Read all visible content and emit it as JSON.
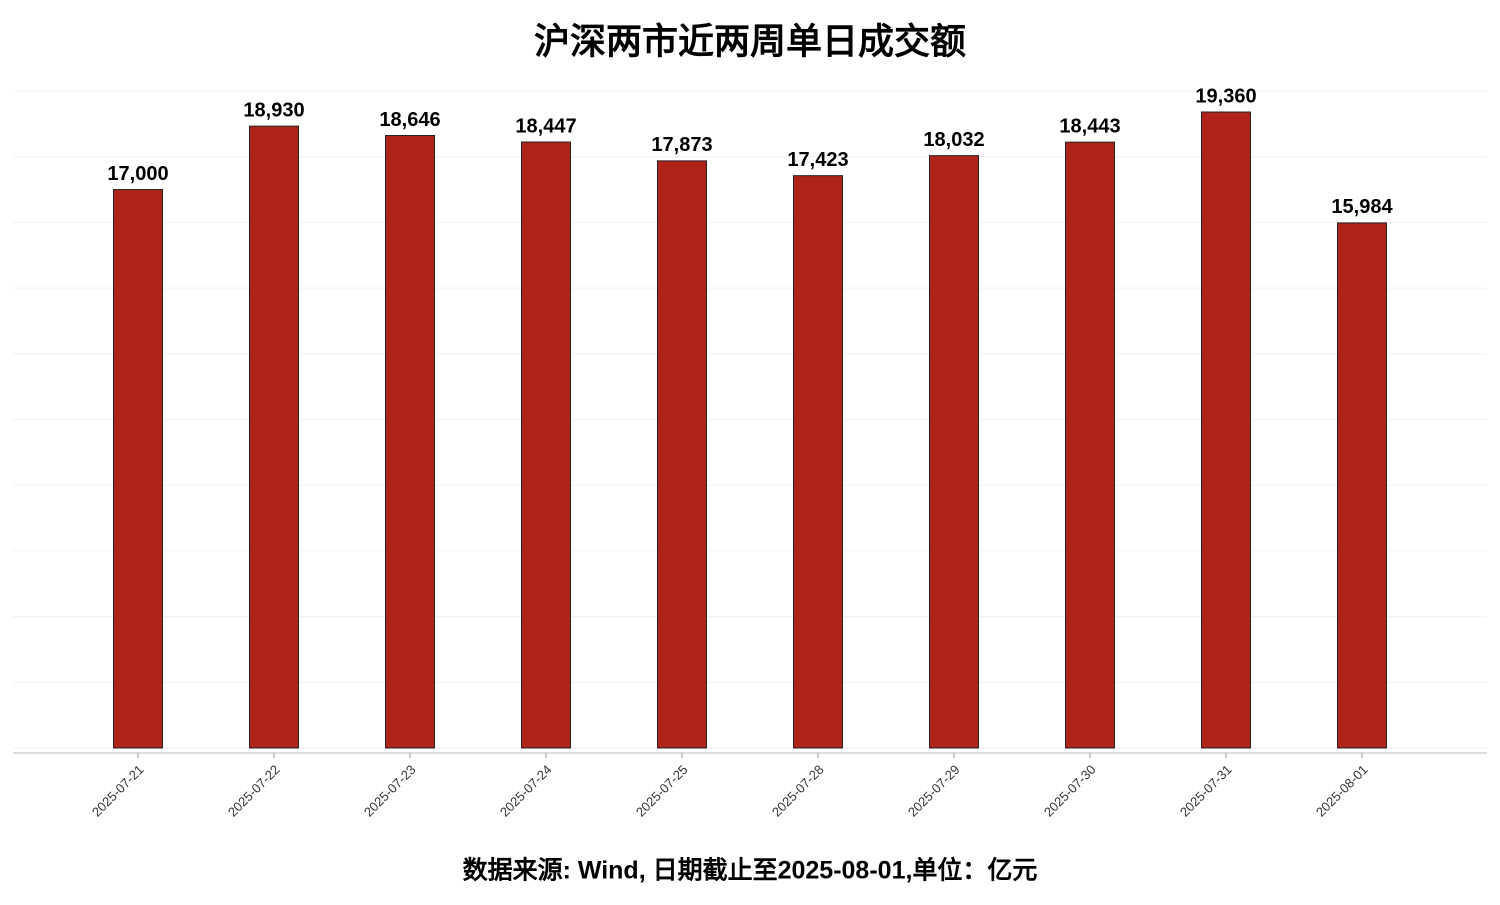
{
  "chart_data": {
    "type": "bar",
    "title": "沪深两市近两周单日成交额",
    "categories": [
      "2025-07-21",
      "2025-07-22",
      "2025-07-23",
      "2025-07-24",
      "2025-07-25",
      "2025-07-28",
      "2025-07-29",
      "2025-07-30",
      "2025-07-31",
      "2025-08-01"
    ],
    "values": [
      17000,
      18930,
      18646,
      18447,
      17873,
      17423,
      18032,
      18443,
      19360,
      15984
    ],
    "value_labels": [
      "17,000",
      "18,930",
      "18,646",
      "18,447",
      "17,873",
      "17,423",
      "18,032",
      "18,443",
      "19,360",
      "15,984"
    ],
    "color": "#b0231a",
    "ylim": [
      0,
      20000
    ],
    "yticks": [
      0,
      2000,
      4000,
      6000,
      8000,
      10000,
      12000,
      14000,
      16000,
      18000,
      20000
    ],
    "show_ytick_labels": false,
    "grid": true,
    "note": "数据来源: Wind, 日期截止至2025-08-01,单位：亿元"
  }
}
